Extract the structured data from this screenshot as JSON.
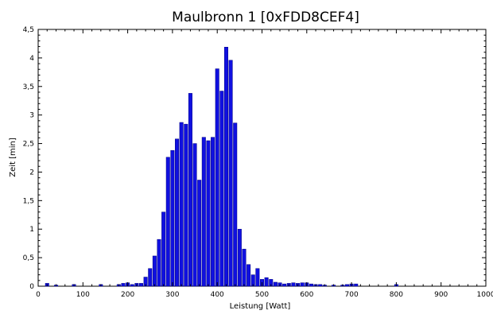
{
  "chart_data": {
    "type": "bar",
    "title": "Maulbronn 1 [0xFDD8CEF4]",
    "xlabel": "Leistung [Watt]",
    "ylabel": "Zeit [min]",
    "xlim": [
      0,
      1000
    ],
    "ylim": [
      0,
      4.5
    ],
    "x_ticks": [
      "0",
      "100",
      "200",
      "300",
      "400",
      "500",
      "600",
      "700",
      "800",
      "900",
      "1000"
    ],
    "y_ticks": [
      "0",
      "0,5",
      "1",
      "1,5",
      "2",
      "2,5",
      "3",
      "3,5",
      "4",
      "4,5"
    ],
    "grid": false,
    "bar_color": "#1010e0",
    "bar_outline": "#000080",
    "bin_width_watt": 8,
    "x": [
      20,
      40,
      80,
      140,
      180,
      190,
      200,
      210,
      220,
      230,
      240,
      250,
      260,
      270,
      280,
      290,
      300,
      310,
      320,
      330,
      340,
      350,
      360,
      370,
      380,
      390,
      400,
      410,
      420,
      430,
      440,
      450,
      460,
      470,
      480,
      490,
      500,
      510,
      520,
      530,
      540,
      550,
      560,
      570,
      580,
      590,
      600,
      610,
      620,
      630,
      640,
      660,
      680,
      690,
      700,
      710,
      800
    ],
    "values": [
      0.05,
      0.02,
      0.03,
      0.03,
      0.03,
      0.05,
      0.06,
      0.03,
      0.05,
      0.05,
      0.16,
      0.31,
      0.53,
      0.82,
      1.3,
      2.26,
      2.38,
      2.58,
      2.87,
      2.84,
      3.38,
      2.5,
      1.86,
      2.61,
      2.55,
      2.61,
      3.81,
      3.42,
      4.19,
      3.96,
      2.86,
      1.0,
      0.65,
      0.38,
      0.2,
      0.31,
      0.12,
      0.15,
      0.12,
      0.07,
      0.06,
      0.04,
      0.05,
      0.06,
      0.05,
      0.06,
      0.06,
      0.04,
      0.03,
      0.03,
      0.02,
      0.02,
      0.02,
      0.03,
      0.04,
      0.04,
      0.03
    ]
  }
}
